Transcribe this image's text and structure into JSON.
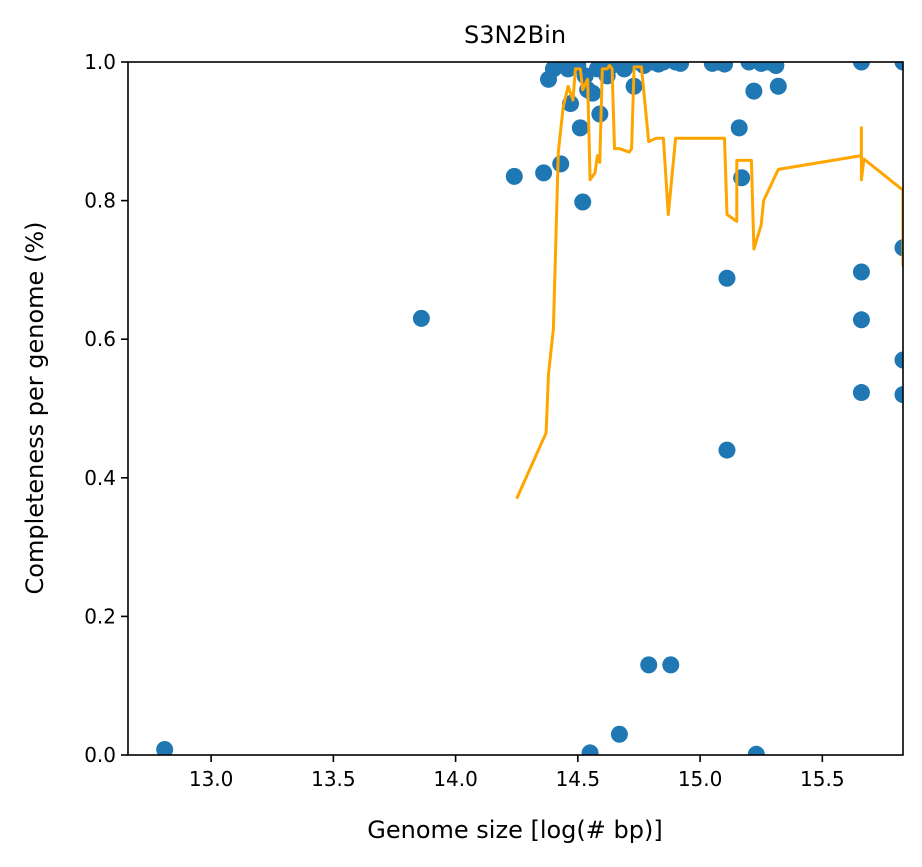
{
  "chart_data": {
    "type": "scatter",
    "title": "S3N2Bin",
    "xlabel": "Genome size [log(# bp)]",
    "ylabel": "Completeness per genome (%)",
    "xlim": [
      12.66,
      15.83
    ],
    "ylim": [
      0.0,
      1.0
    ],
    "xticks": [
      13.0,
      13.5,
      14.0,
      14.5,
      15.0,
      15.5
    ],
    "xtick_labels": [
      "13.0",
      "13.5",
      "14.0",
      "14.5",
      "15.0",
      "15.5"
    ],
    "yticks": [
      0.0,
      0.2,
      0.4,
      0.6,
      0.8,
      1.0
    ],
    "ytick_labels": [
      "0.0",
      "0.2",
      "0.4",
      "0.6",
      "0.8",
      "1.0"
    ],
    "grid": false,
    "colors": {
      "points": "#1f77b4",
      "line": "#ffa500"
    },
    "series": [
      {
        "type": "scatter",
        "points": [
          [
            12.81,
            0.008
          ],
          [
            13.86,
            0.63
          ],
          [
            14.24,
            0.835
          ],
          [
            14.36,
            0.84
          ],
          [
            14.38,
            0.975
          ],
          [
            14.4,
            0.99
          ],
          [
            14.42,
            0.995
          ],
          [
            14.43,
            0.853
          ],
          [
            14.44,
            1.0
          ],
          [
            14.46,
            0.99
          ],
          [
            14.47,
            0.94
          ],
          [
            14.48,
            1.0
          ],
          [
            14.5,
            0.995
          ],
          [
            14.51,
            0.905
          ],
          [
            14.52,
            0.798
          ],
          [
            14.53,
            0.98
          ],
          [
            14.54,
            0.96
          ],
          [
            14.55,
            0.003
          ],
          [
            14.56,
            0.955
          ],
          [
            14.58,
            0.99
          ],
          [
            14.59,
            0.925
          ],
          [
            14.6,
            1.0
          ],
          [
            14.62,
            0.98
          ],
          [
            14.64,
            0.995
          ],
          [
            14.66,
            1.0
          ],
          [
            14.67,
            0.03
          ],
          [
            14.69,
            0.99
          ],
          [
            14.71,
            1.0
          ],
          [
            14.73,
            0.965
          ],
          [
            14.75,
            1.0
          ],
          [
            14.77,
            0.995
          ],
          [
            14.79,
            0.13
          ],
          [
            14.8,
            1.0
          ],
          [
            14.83,
            0.997
          ],
          [
            14.85,
            1.0
          ],
          [
            14.88,
            0.13
          ],
          [
            14.9,
            1.0
          ],
          [
            14.92,
            0.998
          ],
          [
            15.05,
            0.998
          ],
          [
            15.07,
            1.0
          ],
          [
            15.1,
            0.997
          ],
          [
            15.11,
            0.688
          ],
          [
            15.11,
            0.44
          ],
          [
            15.16,
            0.905
          ],
          [
            15.17,
            0.833
          ],
          [
            15.2,
            1.0
          ],
          [
            15.22,
            0.958
          ],
          [
            15.23,
            0.001
          ],
          [
            15.25,
            0.998
          ],
          [
            15.28,
            1.0
          ],
          [
            15.31,
            0.995
          ],
          [
            15.32,
            0.965
          ],
          [
            15.66,
            1.0
          ],
          [
            15.66,
            0.697
          ],
          [
            15.66,
            0.628
          ],
          [
            15.66,
            0.523
          ],
          [
            15.83,
            1.0
          ],
          [
            15.83,
            0.732
          ],
          [
            15.83,
            0.57
          ],
          [
            15.83,
            0.52
          ]
        ]
      },
      {
        "type": "line",
        "points": [
          [
            14.25,
            0.37
          ],
          [
            14.37,
            0.465
          ],
          [
            14.38,
            0.55
          ],
          [
            14.4,
            0.615
          ],
          [
            14.42,
            0.87
          ],
          [
            14.44,
            0.935
          ],
          [
            14.46,
            0.965
          ],
          [
            14.48,
            0.945
          ],
          [
            14.49,
            0.99
          ],
          [
            14.51,
            0.99
          ],
          [
            14.52,
            0.96
          ],
          [
            14.54,
            0.975
          ],
          [
            14.55,
            0.83
          ],
          [
            14.57,
            0.84
          ],
          [
            14.58,
            0.865
          ],
          [
            14.59,
            0.855
          ],
          [
            14.6,
            0.99
          ],
          [
            14.62,
            0.99
          ],
          [
            14.63,
            0.995
          ],
          [
            14.64,
            0.99
          ],
          [
            14.65,
            0.875
          ],
          [
            14.67,
            0.875
          ],
          [
            14.71,
            0.87
          ],
          [
            14.72,
            0.875
          ],
          [
            14.73,
            0.993
          ],
          [
            14.76,
            0.993
          ],
          [
            14.79,
            0.885
          ],
          [
            14.82,
            0.89
          ],
          [
            14.85,
            0.89
          ],
          [
            14.87,
            0.78
          ],
          [
            14.9,
            0.89
          ],
          [
            15.1,
            0.89
          ],
          [
            15.11,
            0.78
          ],
          [
            15.15,
            0.77
          ],
          [
            15.15,
            0.858
          ],
          [
            15.21,
            0.858
          ],
          [
            15.22,
            0.73
          ],
          [
            15.25,
            0.765
          ],
          [
            15.26,
            0.8
          ],
          [
            15.32,
            0.845
          ],
          [
            15.66,
            0.865
          ],
          [
            15.66,
            0.905
          ],
          [
            15.66,
            0.83
          ],
          [
            15.67,
            0.86
          ],
          [
            15.83,
            0.815
          ],
          [
            15.83,
            0.705
          ]
        ]
      }
    ]
  }
}
